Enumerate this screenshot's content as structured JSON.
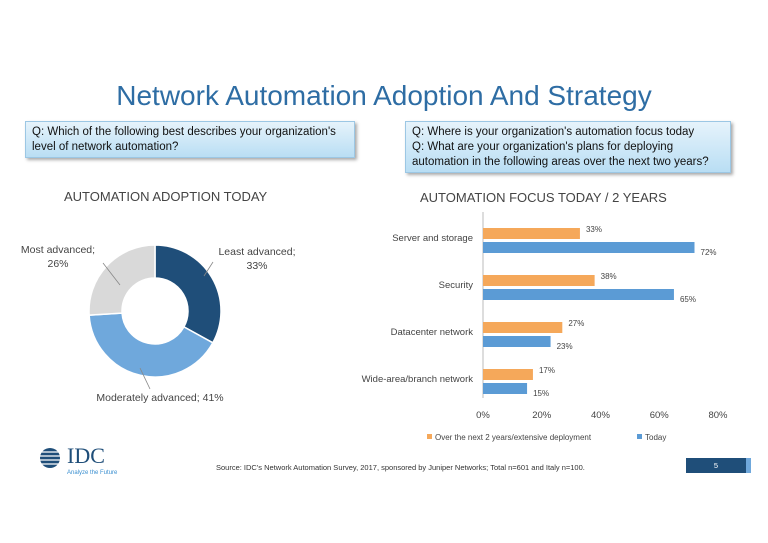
{
  "title": "Network Automation Adoption And Strategy",
  "questions": {
    "left": [
      "Q: Which of the following best describes your organization's",
      "level of network automation?"
    ],
    "right": [
      "Q: Where is your organization's automation focus today",
      "Q: What are your organization's plans for deploying",
      "automation in the following areas over the next two years?"
    ]
  },
  "chart_data": [
    {
      "type": "pie",
      "title": "AUTOMATION ADOPTION TODAY",
      "donut": true,
      "categories": [
        "Least advanced",
        "Moderately advanced",
        "Most advanced"
      ],
      "values": [
        33,
        41,
        26
      ],
      "labels": [
        "Least advanced; 33%",
        "Moderately advanced; 41%",
        "Most advanced; 26%"
      ],
      "colors": [
        "#1f4e79",
        "#6fa8dc",
        "#d9d9d9"
      ]
    },
    {
      "type": "bar",
      "orientation": "horizontal",
      "title": "AUTOMATION FOCUS TODAY / 2 YEARS",
      "categories": [
        "Server and storage",
        "Security",
        "Datacenter network",
        "Wide-area/branch network"
      ],
      "series": [
        {
          "name": "Over the next 2 years/extensive deployment",
          "values": [
            33,
            38,
            27,
            17
          ],
          "color": "#f5a85a"
        },
        {
          "name": "Today",
          "values": [
            72,
            65,
            23,
            15
          ],
          "color": "#5b9bd5"
        }
      ],
      "xlim": [
        0,
        80
      ],
      "xticks": [
        "0%",
        "20%",
        "40%",
        "60%",
        "80%"
      ],
      "grid": false,
      "legend": "bottom"
    }
  ],
  "footer": {
    "logo": "IDC",
    "tagline": "Analyze the Future",
    "source": "Source: IDC's Network Automation Survey, 2017, sponsored by Juniper Networks; Total n=601 and Italy n=100.",
    "page": "5"
  }
}
